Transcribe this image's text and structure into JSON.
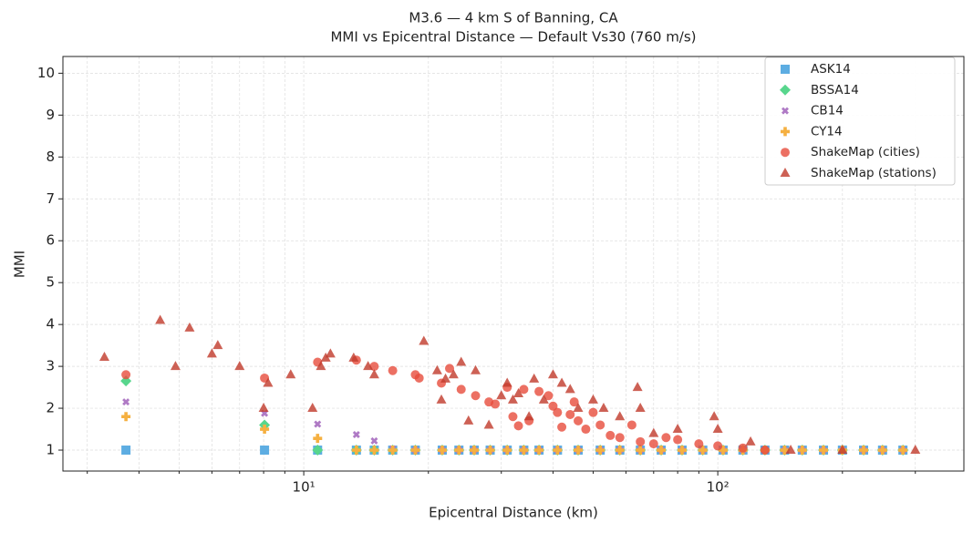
{
  "chart_data": {
    "type": "scatter",
    "title": "M3.6 — 4 km S of Banning, CA",
    "subtitle": "MMI vs Epicentral Distance — Default Vs30 (760 m/s)",
    "x_label": "Epicentral Distance (km)",
    "y_label": "MMI",
    "log_x": true,
    "grid": true,
    "legend": "upper right",
    "xlim": [
      2.62,
      393
    ],
    "ylim": [
      0.5,
      10.4
    ],
    "xticks": [
      {
        "value": 10,
        "label": "10¹"
      },
      {
        "value": 100,
        "label": "10²"
      }
    ],
    "xminorticks": [
      3,
      4,
      5,
      6,
      7,
      8,
      9,
      20,
      30,
      40,
      50,
      60,
      70,
      80,
      90,
      200,
      300
    ],
    "yticks": [
      1,
      2,
      3,
      4,
      5,
      6,
      7,
      8,
      9,
      10
    ],
    "series": [
      {
        "name": "ASK14",
        "color": "#5dade2",
        "marker": "square",
        "x": [
          3.72,
          8.04,
          10.8,
          13.4,
          14.8,
          16.4,
          18.6,
          21.6,
          23.7,
          25.8,
          28.2,
          31,
          34,
          37,
          41,
          46,
          52,
          58,
          65,
          73,
          82,
          92,
          103,
          115,
          130,
          145,
          160,
          180,
          200,
          225,
          250,
          280
        ],
        "values": [
          1,
          1,
          1,
          1,
          1,
          1,
          1,
          1,
          1,
          1,
          1,
          1,
          1,
          1,
          1,
          1,
          1,
          1,
          1,
          1,
          1,
          1,
          1,
          1,
          1,
          1,
          1,
          1,
          1,
          1,
          1,
          1
        ]
      },
      {
        "name": "BSSA14",
        "color": "#58d68d",
        "marker": "diamond",
        "x": [
          3.72,
          8.04,
          10.8,
          13.4,
          14.8,
          16.4,
          18.6,
          21.6,
          23.7,
          25.8,
          28.2,
          31,
          34,
          37,
          41,
          46,
          52,
          58,
          65,
          73,
          82,
          92,
          103,
          115,
          130,
          145,
          160,
          180,
          200,
          225,
          250,
          280
        ],
        "values": [
          2.65,
          1.6,
          1,
          1,
          1,
          1,
          1,
          1,
          1,
          1,
          1,
          1,
          1,
          1,
          1,
          1,
          1,
          1,
          1,
          1,
          1,
          1,
          1,
          1,
          1,
          1,
          1,
          1,
          1,
          1,
          1,
          1
        ]
      },
      {
        "name": "CB14",
        "color": "#af7ac5",
        "marker": "x",
        "x": [
          3.72,
          8.04,
          10.8,
          13.4,
          14.8,
          16.4,
          18.6,
          21.6,
          23.7,
          25.8,
          28.2,
          31,
          34,
          37,
          41,
          46,
          52,
          58,
          65,
          73,
          82,
          92,
          103,
          115,
          130,
          145,
          160,
          180,
          200,
          225,
          250,
          280
        ],
        "values": [
          2.15,
          1.88,
          1.62,
          1.37,
          1.22,
          1.03,
          1,
          1,
          1,
          1,
          1,
          1,
          1,
          1,
          1,
          1,
          1,
          1,
          1,
          1,
          1,
          1,
          1,
          1,
          1,
          1,
          1,
          1,
          1,
          1,
          1,
          1
        ]
      },
      {
        "name": "CY14",
        "color": "#f5b041",
        "marker": "plus",
        "x": [
          3.72,
          8.04,
          10.8,
          13.4,
          14.8,
          16.4,
          18.6,
          21.6,
          23.7,
          25.8,
          28.2,
          31,
          34,
          37,
          41,
          46,
          52,
          58,
          65,
          73,
          82,
          92,
          103,
          115,
          130,
          145,
          160,
          180,
          200,
          225,
          250,
          280
        ],
        "values": [
          1.8,
          1.5,
          1.28,
          1,
          1,
          1,
          1,
          1,
          1,
          1,
          1,
          1,
          1,
          1,
          1,
          1,
          1,
          1,
          1,
          1,
          1,
          1,
          1,
          1,
          1,
          1,
          1,
          1,
          1,
          1,
          1,
          1
        ]
      },
      {
        "name": "ShakeMap (cities)",
        "color": "#e74c3c",
        "marker": "circle",
        "x": [
          3.72,
          8.04,
          10.8,
          13.4,
          14.8,
          16.4,
          18.6,
          19,
          21.5,
          22.5,
          24,
          26,
          28,
          29,
          31,
          32,
          33,
          34,
          35,
          37,
          39,
          40,
          41,
          42,
          44,
          45,
          46,
          48,
          50,
          52,
          55,
          58,
          62,
          65,
          70,
          75,
          80,
          90,
          100,
          115,
          130
        ],
        "values": [
          2.8,
          2.72,
          3.1,
          3.15,
          3.0,
          2.9,
          2.8,
          2.72,
          2.6,
          2.95,
          2.45,
          2.3,
          2.15,
          2.1,
          2.5,
          1.8,
          1.58,
          2.45,
          1.7,
          2.4,
          2.3,
          2.05,
          1.9,
          1.55,
          1.85,
          2.15,
          1.7,
          1.5,
          1.9,
          1.6,
          1.35,
          1.3,
          1.6,
          1.2,
          1.15,
          1.3,
          1.25,
          1.15,
          1.1,
          1.05,
          1.0
        ]
      },
      {
        "name": "ShakeMap (stations)",
        "color": "#c0392b",
        "marker": "triangle",
        "x": [
          3.3,
          4.5,
          4.9,
          5.3,
          6.0,
          6.2,
          7.0,
          8.0,
          8.2,
          9.3,
          10.5,
          11.0,
          11.3,
          11.6,
          13.2,
          14.3,
          14.8,
          19.5,
          21,
          21.5,
          22,
          23,
          24,
          25,
          26,
          28,
          30,
          31,
          32,
          33,
          35,
          36,
          38,
          40,
          42,
          44,
          46,
          50,
          53,
          58,
          64,
          65,
          70,
          80,
          98,
          100,
          120,
          150,
          200,
          300
        ],
        "values": [
          3.22,
          4.1,
          3.0,
          3.92,
          3.3,
          3.5,
          3.0,
          2.0,
          2.6,
          2.8,
          2.0,
          3.0,
          3.2,
          3.3,
          3.2,
          3.0,
          2.8,
          3.6,
          2.9,
          2.2,
          2.7,
          2.8,
          3.1,
          1.7,
          2.9,
          1.6,
          2.3,
          2.6,
          2.2,
          2.35,
          1.8,
          2.7,
          2.2,
          2.8,
          2.6,
          2.45,
          2.0,
          2.2,
          2.0,
          1.8,
          2.5,
          2.0,
          1.4,
          1.5,
          1.8,
          1.5,
          1.2,
          1.0,
          1.0,
          1.0
        ]
      }
    ]
  }
}
